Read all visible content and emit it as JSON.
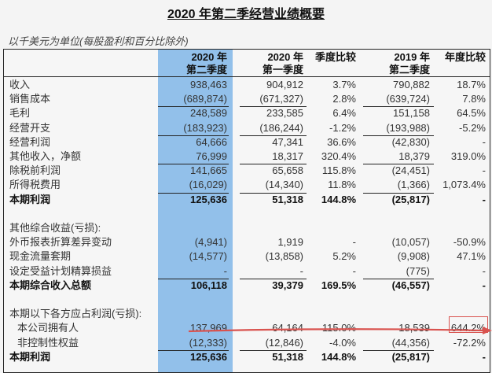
{
  "title": "2020 年第二季经营业绩概要",
  "subtitle": "以千美元为单位(每股盈利和百分比除外)",
  "headers": {
    "c1": [
      "2020 年",
      "第二季度"
    ],
    "c2": [
      "2020 年",
      "第一季度"
    ],
    "c3": [
      "季度比较"
    ],
    "c4": [
      "2019 年",
      "第二季度"
    ],
    "c5": [
      "年度比较"
    ]
  },
  "rows": [
    {
      "label": "收入",
      "c1": "938,463",
      "c2": "904,912",
      "c3": "3.7%",
      "c4": "790,882",
      "c5": "18.7%"
    },
    {
      "label": "销售成本",
      "c1": "(689,874)",
      "c2": "(671,327)",
      "c3": "2.8%",
      "c4": "(639,724)",
      "c5": "7.8%"
    },
    {
      "label": "毛利",
      "c1": "248,589",
      "c2": "233,585",
      "c3": "6.4%",
      "c4": "151,158",
      "c5": "64.5%"
    },
    {
      "label": "经营开支",
      "c1": "(183,923)",
      "c2": "(186,244)",
      "c3": "-1.2%",
      "c4": "(193,988)",
      "c5": "-5.2%"
    },
    {
      "label": "经营利润",
      "c1": "64,666",
      "c2": "47,341",
      "c3": "36.6%",
      "c4": "(42,830)",
      "c5": "-"
    },
    {
      "label": "其他收入，净额",
      "c1": "76,999",
      "c2": "18,317",
      "c3": "320.4%",
      "c4": "18,379",
      "c5": "319.0%"
    },
    {
      "label": "除税前利润",
      "c1": "141,665",
      "c2": "65,658",
      "c3": "115.8%",
      "c4": "(24,451)",
      "c5": "-"
    },
    {
      "label": "所得税费用",
      "c1": "(16,029)",
      "c2": "(14,340)",
      "c3": "11.8%",
      "c4": "(1,366)",
      "c5": "1,073.4%"
    },
    {
      "label": "本期利润",
      "c1": "125,636",
      "c2": "51,318",
      "c3": "144.8%",
      "c4": "(25,817)",
      "c5": "-"
    },
    {
      "label": "其他综合收益(亏损):"
    },
    {
      "label": "外币报表折算差异变动",
      "c1": "(4,941)",
      "c2": "1,919",
      "c3": "-",
      "c4": "(10,057)",
      "c5": "-50.9%"
    },
    {
      "label": "现金流量套期",
      "c1": "(14,577)",
      "c2": "(13,858)",
      "c3": "5.2%",
      "c4": "(9,908)",
      "c5": "47.1%"
    },
    {
      "label": "设定受益计划精算损益",
      "c1": "-",
      "c2": "-",
      "c3": "-",
      "c4": "(775)",
      "c5": "-"
    },
    {
      "label": "本期综合收入总额",
      "c1": "106,118",
      "c2": "39,379",
      "c3": "169.5%",
      "c4": "(46,557)",
      "c5": "-"
    },
    {
      "label": "本期以下各方应占利润(亏损):"
    },
    {
      "label": "本公司拥有人",
      "c1": "137,969",
      "c2": "64,164",
      "c3": "115.0%",
      "c4": "18,539",
      "c5": "644.2%"
    },
    {
      "label": "非控制性权益",
      "c1": "(12,333)",
      "c2": "(12,846)",
      "c3": "-4.0%",
      "c4": "(44,356)",
      "c5": "-72.2%"
    },
    {
      "label": "本期利润",
      "c1": "125,636",
      "c2": "51,318",
      "c3": "144.8%",
      "c4": "(25,817)",
      "c5": "-"
    }
  ],
  "colors": {
    "highlight_column": "#92c0ea",
    "annotation": "#d9534f"
  }
}
